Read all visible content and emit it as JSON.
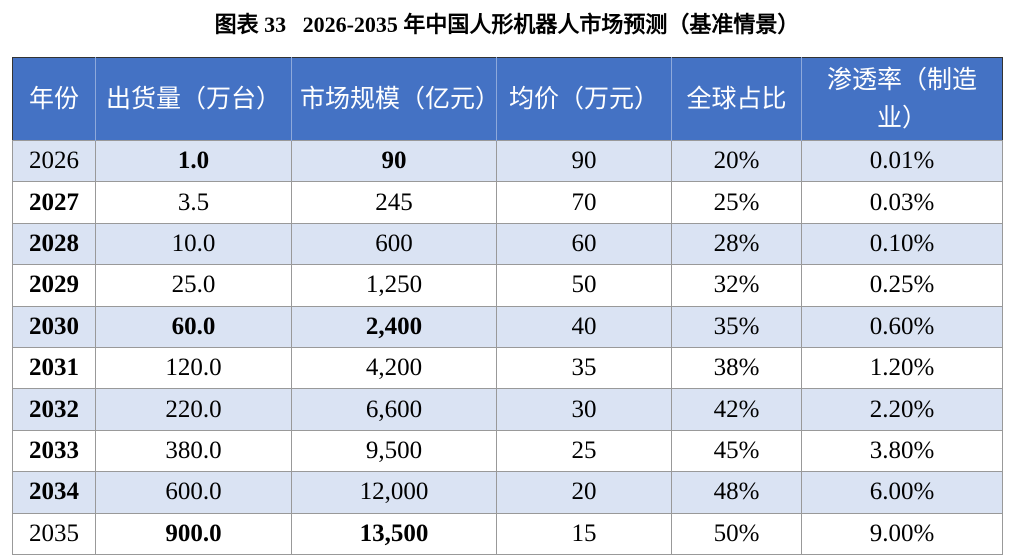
{
  "title": "图表 33   2026-2035 年中国人形机器人市场预测（基准情景）",
  "table": {
    "header": [
      "年份",
      "出货量（万台）",
      "市场规模（亿元）",
      "均价（万元）",
      "全球占比",
      "渗透率（制造业）"
    ],
    "rows": [
      [
        "2026",
        "1.0",
        "90",
        "90",
        "20%",
        "0.01%"
      ],
      [
        "2027",
        "3.5",
        "245",
        "70",
        "25%",
        "0.03%"
      ],
      [
        "2028",
        "10.0",
        "600",
        "60",
        "28%",
        "0.10%"
      ],
      [
        "2029",
        "25.0",
        "1,250",
        "50",
        "32%",
        "0.25%"
      ],
      [
        "2030",
        "60.0",
        "2,400",
        "40",
        "35%",
        "0.60%"
      ],
      [
        "2031",
        "120.0",
        "4,200",
        "35",
        "38%",
        "1.20%"
      ],
      [
        "2032",
        "220.0",
        "6,600",
        "30",
        "42%",
        "2.20%"
      ],
      [
        "2033",
        "380.0",
        "9,500",
        "25",
        "45%",
        "3.80%"
      ],
      [
        "2034",
        "600.0",
        "12,000",
        "20",
        "48%",
        "6.00%"
      ],
      [
        "2035",
        "900.0",
        "13,500",
        "15",
        "50%",
        "9.00%"
      ]
    ]
  }
}
